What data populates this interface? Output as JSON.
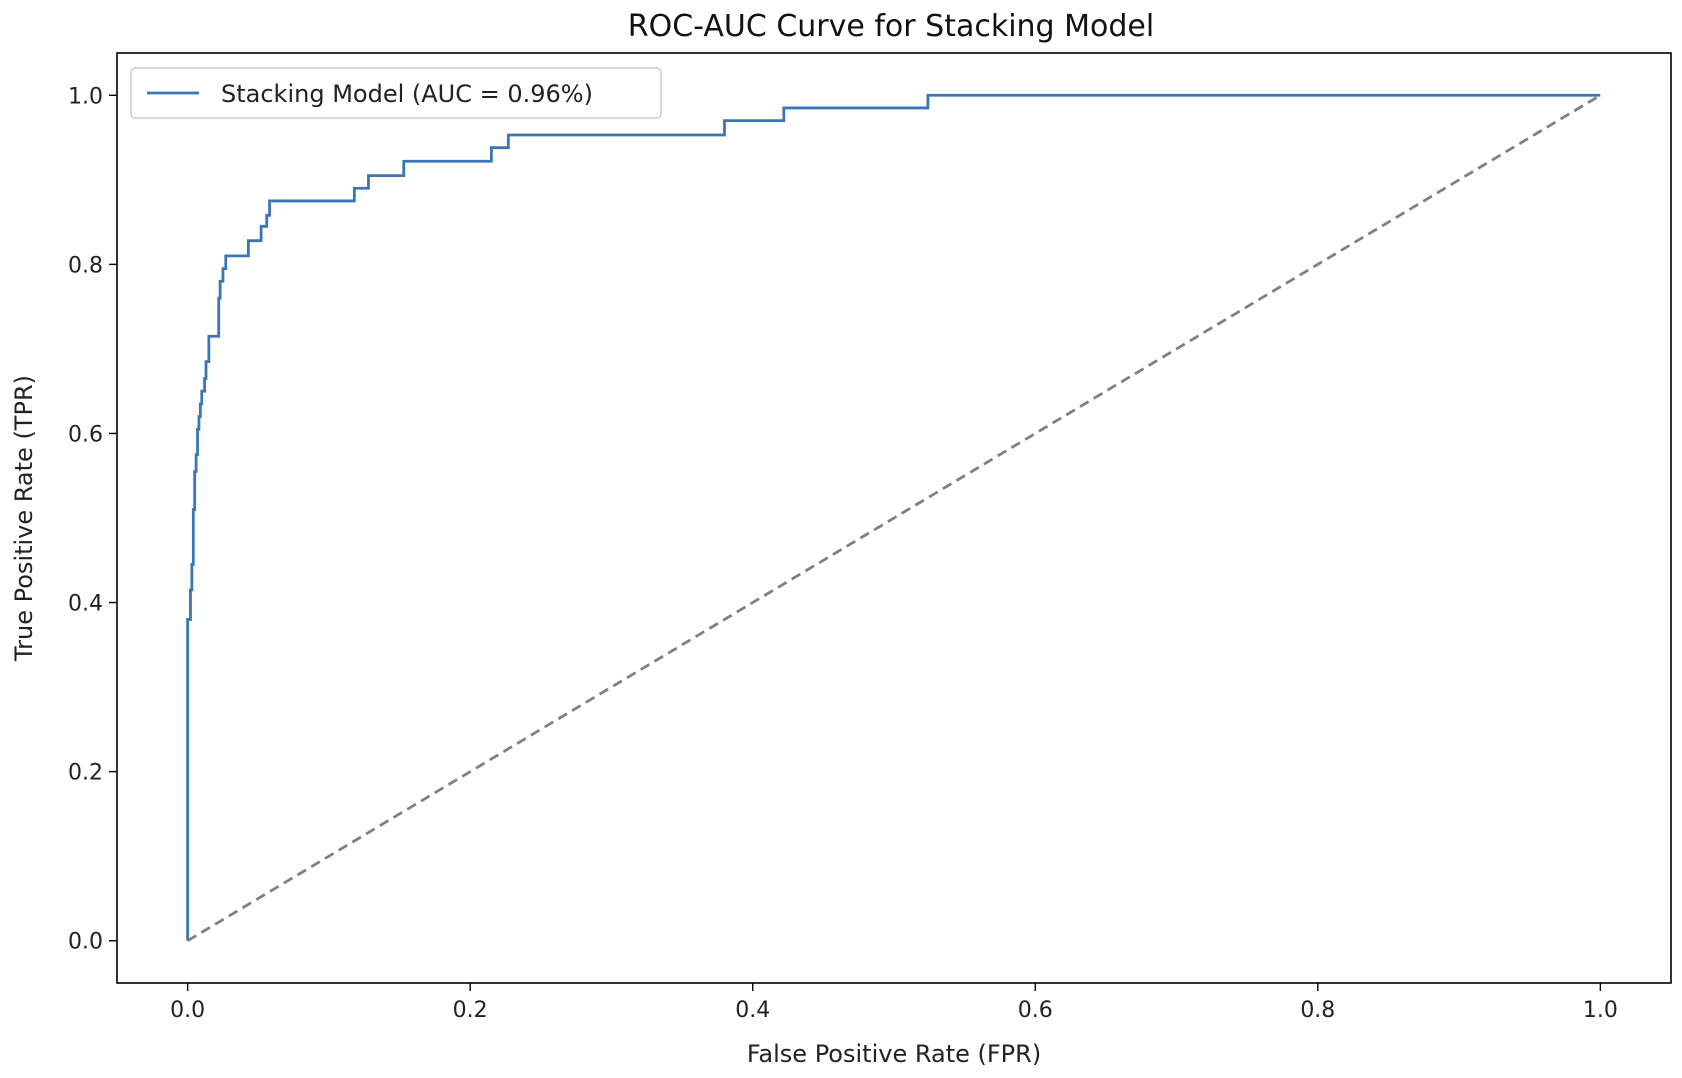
{
  "chart_data": {
    "type": "line",
    "title": "ROC-AUC Curve for Stacking Model",
    "xlabel": "False Positive Rate (FPR)",
    "ylabel": "True Positive Rate (TPR)",
    "xlim": [
      -0.05,
      1.05
    ],
    "ylim": [
      -0.05,
      1.05
    ],
    "xticks": [
      0.0,
      0.2,
      0.4,
      0.6,
      0.8,
      1.0
    ],
    "yticks": [
      0.0,
      0.2,
      0.4,
      0.6,
      0.8,
      1.0
    ],
    "xtick_labels": [
      "0.0",
      "0.2",
      "0.4",
      "0.6",
      "0.8",
      "1.0"
    ],
    "ytick_labels": [
      "0.0",
      "0.2",
      "0.4",
      "0.6",
      "0.8",
      "1.0"
    ],
    "grid": false,
    "legend_position": "upper-left",
    "series": [
      {
        "name": "Stacking Model (AUC = 0.96%)",
        "color": "#3a76b5",
        "style": "step",
        "x": [
          0.0,
          0.0,
          0.002,
          0.002,
          0.003,
          0.003,
          0.004,
          0.004,
          0.005,
          0.005,
          0.006,
          0.006,
          0.007,
          0.007,
          0.008,
          0.008,
          0.009,
          0.009,
          0.01,
          0.01,
          0.012,
          0.012,
          0.013,
          0.013,
          0.015,
          0.015,
          0.016,
          0.016,
          0.022,
          0.022,
          0.023,
          0.023,
          0.025,
          0.025,
          0.027,
          0.027,
          0.03,
          0.03,
          0.043,
          0.043,
          0.052,
          0.052,
          0.056,
          0.056,
          0.058,
          0.058,
          0.061,
          0.061,
          0.118,
          0.118,
          0.128,
          0.128,
          0.153,
          0.153,
          0.215,
          0.215,
          0.227,
          0.227,
          0.38,
          0.38,
          0.422,
          0.422,
          0.524,
          0.524,
          1.0
        ],
        "y": [
          0.0,
          0.38,
          0.38,
          0.415,
          0.415,
          0.445,
          0.445,
          0.51,
          0.51,
          0.555,
          0.555,
          0.575,
          0.575,
          0.605,
          0.605,
          0.62,
          0.62,
          0.635,
          0.635,
          0.65,
          0.65,
          0.665,
          0.665,
          0.685,
          0.685,
          0.715,
          0.715,
          0.715,
          0.715,
          0.76,
          0.76,
          0.78,
          0.78,
          0.795,
          0.795,
          0.81,
          0.81,
          0.81,
          0.81,
          0.828,
          0.828,
          0.845,
          0.845,
          0.858,
          0.858,
          0.875,
          0.875,
          0.875,
          0.875,
          0.89,
          0.89,
          0.905,
          0.905,
          0.922,
          0.922,
          0.938,
          0.938,
          0.953,
          0.953,
          0.97,
          0.97,
          0.985,
          0.985,
          1.0,
          1.0
        ]
      },
      {
        "name": "",
        "color": "#808080",
        "style": "dashed",
        "x": [
          0.0,
          1.0
        ],
        "y": [
          0.0,
          1.0
        ]
      }
    ]
  }
}
